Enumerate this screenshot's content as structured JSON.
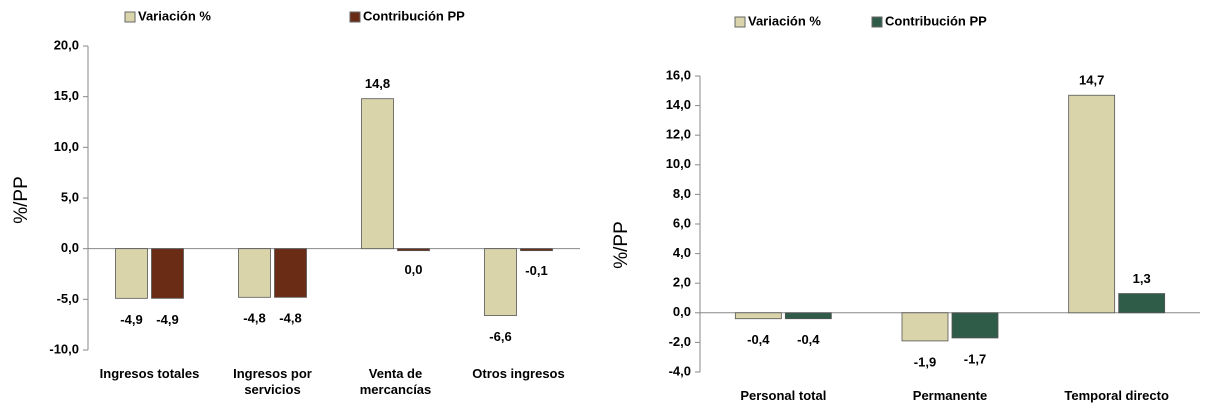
{
  "chart_data": [
    {
      "type": "bar",
      "y_label": "%/PP",
      "categories": [
        "Ingresos totales",
        "Ingresos por servicios",
        "Venta de mercancías",
        "Otros ingresos"
      ],
      "series": [
        {
          "name": "Variación %",
          "color": "#d9d4aa",
          "values": [
            -4.9,
            -4.8,
            14.8,
            -6.6
          ],
          "value_labels": [
            "-4,9",
            "-4,8",
            "14,8",
            "-6,6"
          ]
        },
        {
          "name": "Contribución PP",
          "color": "#6b2c16",
          "values": [
            -4.9,
            -4.8,
            0.0,
            -0.1
          ],
          "value_labels": [
            "-4,9",
            "-4,8",
            "0,0",
            "-0,1"
          ]
        }
      ],
      "ylim": [
        -10,
        20
      ],
      "yticks": [
        {
          "value": -10,
          "label": "-10,0"
        },
        {
          "value": -5,
          "label": "-5,0"
        },
        {
          "value": 0,
          "label": "0,0"
        },
        {
          "value": 5,
          "label": "5,0"
        },
        {
          "value": 10,
          "label": "10,0"
        },
        {
          "value": 15,
          "label": "15,0"
        },
        {
          "value": 20,
          "label": "20,0"
        }
      ]
    },
    {
      "type": "bar",
      "y_label": "%/PP",
      "categories": [
        "Personal total",
        "Permanente",
        "Temporal directo"
      ],
      "series": [
        {
          "name": "Variación %",
          "color": "#d9d4aa",
          "values": [
            -0.4,
            -1.9,
            14.7
          ],
          "value_labels": [
            "-0,4",
            "-1,9",
            "14,7"
          ]
        },
        {
          "name": "Contribución PP",
          "color": "#2f5b49",
          "values": [
            -0.4,
            -1.7,
            1.3
          ],
          "value_labels": [
            "-0,4",
            "-1,7",
            "1,3"
          ]
        }
      ],
      "ylim": [
        -4,
        16
      ],
      "yticks": [
        {
          "value": -4,
          "label": "-4,0"
        },
        {
          "value": -2,
          "label": "-2,0"
        },
        {
          "value": 0,
          "label": "0,0"
        },
        {
          "value": 2,
          "label": "2,0"
        },
        {
          "value": 4,
          "label": "4,0"
        },
        {
          "value": 6,
          "label": "6,0"
        },
        {
          "value": 8,
          "label": "8,0"
        },
        {
          "value": 10,
          "label": "10,0"
        },
        {
          "value": 12,
          "label": "12,0"
        },
        {
          "value": 14,
          "label": "14,0"
        },
        {
          "value": 16,
          "label": "16,0"
        }
      ]
    }
  ]
}
